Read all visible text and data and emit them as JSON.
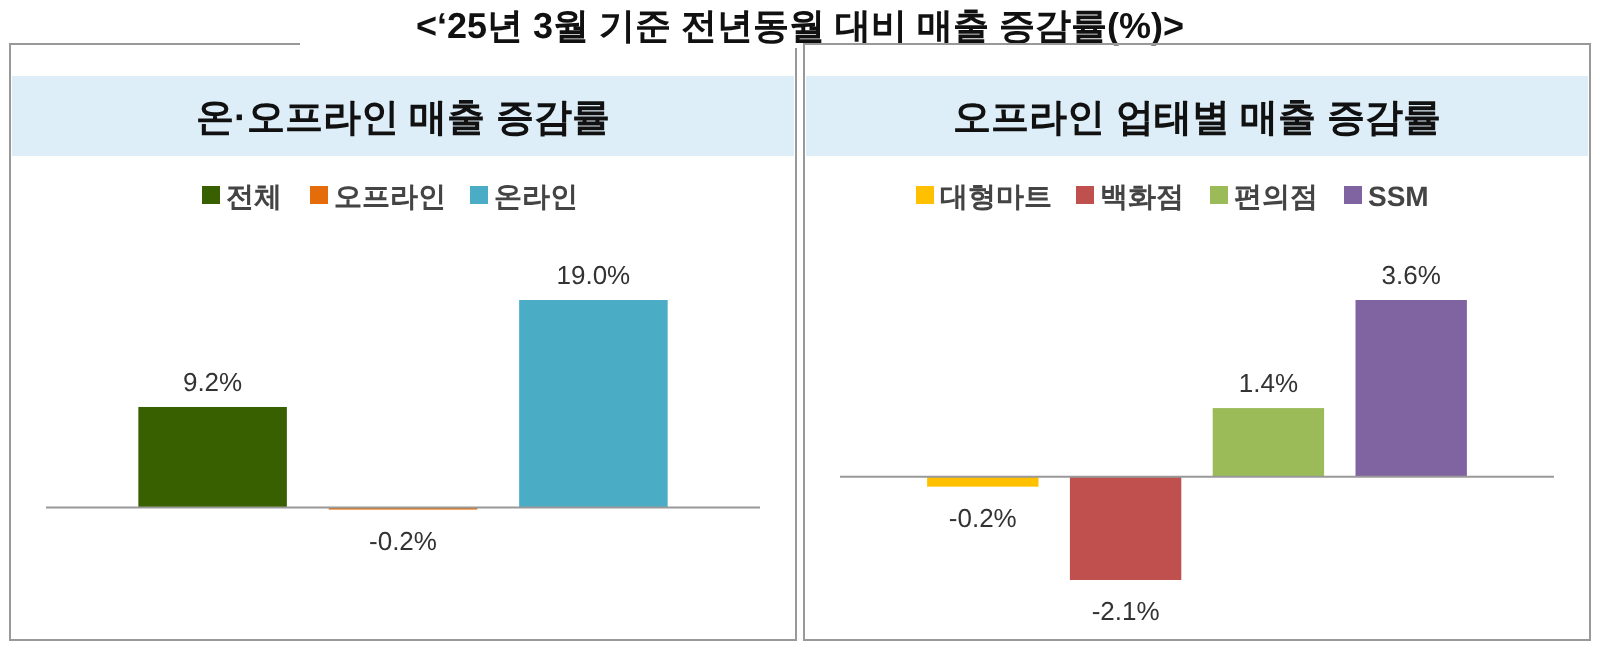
{
  "chart_data": [
    {
      "type": "bar",
      "title": "온·오프라인 매출 증감률",
      "annotations": [
        "<‘25년 3월 기준 전년동월 대비 매출 증감률(%)>"
      ],
      "categories": [
        null
      ],
      "legend": "top",
      "series": [
        {
          "name": "전체",
          "color": "#386000",
          "values": [
            9.2
          ],
          "value_labels": [
            "9.2%"
          ]
        },
        {
          "name": "오프라인",
          "color": "#e46c0a",
          "values": [
            -0.2
          ],
          "value_labels": [
            "-0.2%"
          ]
        },
        {
          "name": "온라인",
          "color": "#4bacc6",
          "values": [
            19.0
          ],
          "value_labels": [
            "19.0%"
          ]
        }
      ]
    },
    {
      "type": "bar",
      "title": "오프라인 업태별 매출 증감률",
      "categories": [
        null
      ],
      "legend": "top",
      "series": [
        {
          "name": "대형마트",
          "color": "#ffc000",
          "values": [
            -0.2
          ],
          "value_labels": [
            "-0.2%"
          ]
        },
        {
          "name": "백화점",
          "color": "#c0504d",
          "values": [
            -2.1
          ],
          "value_labels": [
            "-2.1%"
          ]
        },
        {
          "name": "편의점",
          "color": "#9bbb59",
          "values": [
            1.4
          ],
          "value_labels": [
            "1.4%"
          ]
        },
        {
          "name": "SSM",
          "color": "#8064a2",
          "values": [
            3.6
          ],
          "value_labels": [
            "3.6%"
          ]
        }
      ]
    }
  ]
}
